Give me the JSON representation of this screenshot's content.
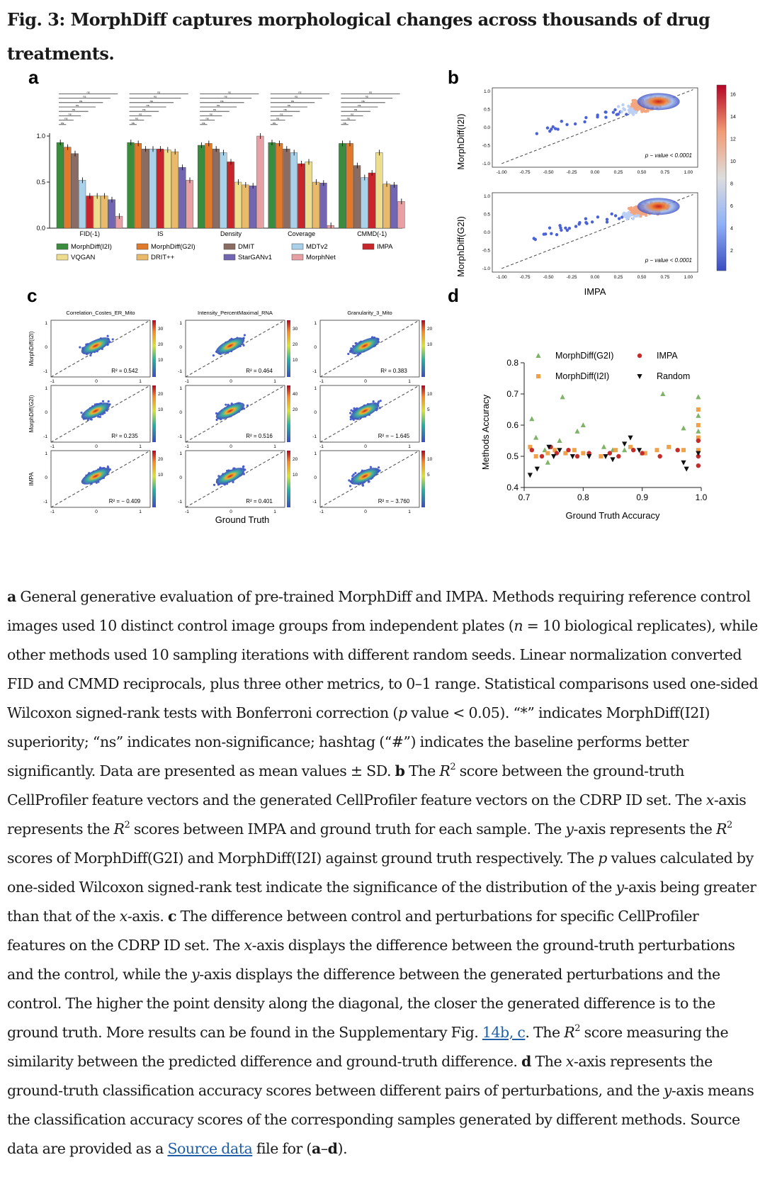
{
  "figure_title": "Fig. 3: MorphDiff captures morphological changes across thousands of drug treatments.",
  "panel_letters": {
    "a": "a",
    "b": "b",
    "c": "c",
    "d": "d"
  },
  "chart_data": [
    {
      "panel": "a",
      "type": "bar",
      "categories": [
        "FID(-1)",
        "IS",
        "Density",
        "Coverage",
        "CMMD(-1)"
      ],
      "ylim": [
        0,
        1.0
      ],
      "yticks": [
        "0.0",
        "0.5",
        "1.0"
      ],
      "legend": {
        "placement": "bottom",
        "entries": [
          "MorphDiff(I2I)",
          "MorphDiff(G2I)",
          "DMIT",
          "MDTv2",
          "IMPA",
          "VQGAN",
          "DRIT++",
          "StarGANv1",
          "MorphNet"
        ]
      },
      "significance_label": "ns",
      "series": [
        {
          "name": "MorphDiff(I2I)",
          "color": "#3a8d3c",
          "values": [
            0.93,
            0.93,
            0.9,
            0.93,
            0.92
          ]
        },
        {
          "name": "MorphDiff(G2I)",
          "color": "#e0792a",
          "values": [
            0.88,
            0.92,
            0.92,
            0.92,
            0.92
          ]
        },
        {
          "name": "DMIT",
          "color": "#8a6c62",
          "values": [
            0.81,
            0.86,
            0.86,
            0.86,
            0.68
          ]
        },
        {
          "name": "MDTv2",
          "color": "#a9d1ea",
          "values": [
            0.52,
            0.86,
            0.82,
            0.82,
            0.55
          ]
        },
        {
          "name": "IMPA",
          "color": "#c9262c",
          "values": [
            0.35,
            0.86,
            0.72,
            0.7,
            0.6
          ]
        },
        {
          "name": "VQGAN",
          "color": "#eedd8c",
          "values": [
            0.35,
            0.85,
            0.5,
            0.72,
            0.82
          ]
        },
        {
          "name": "DRIT++",
          "color": "#e9ba6a",
          "values": [
            0.35,
            0.83,
            0.47,
            0.5,
            0.48
          ]
        },
        {
          "name": "StarGANv1",
          "color": "#7266b3",
          "values": [
            0.31,
            0.66,
            0.46,
            0.49,
            0.47
          ]
        },
        {
          "name": "MorphNet",
          "color": "#e8a0a4",
          "values": [
            0.13,
            0.52,
            1.0,
            0.03,
            0.29
          ]
        }
      ]
    },
    {
      "panel": "b",
      "type": "scatter",
      "xlabel": "IMPA",
      "ylabels": [
        "MorphDiff(I2I)",
        "MorphDiff(G2I)"
      ],
      "xticks": [
        "-1.00",
        "-0.75",
        "-0.50",
        "-0.25",
        "0.00",
        "0.25",
        "0.50",
        "0.75",
        "1.00"
      ],
      "yticks": [
        "-1.0",
        "-0.5",
        "0.0",
        "0.5",
        "1.0"
      ],
      "annotation": "p − value < 0.0001",
      "colorbar_ticks": [
        "2",
        "4",
        "6",
        "8",
        "10",
        "12",
        "14",
        "16"
      ]
    },
    {
      "panel": "c",
      "type": "scatter",
      "xlabel": "Ground Truth",
      "columns": [
        "Correlation_Costes_ER_Mito",
        "Intensity_PercentMaximal_RNA",
        "Granularity_3_Mito"
      ],
      "rows": [
        "MorphDiff(I2I)",
        "MorphDiff(G2I)",
        "IMPA"
      ],
      "r2": [
        [
          "R² = 0.542",
          "R² = 0.464",
          "R² = 0.383"
        ],
        [
          "R² = 0.235",
          "R² = 0.516",
          "R² = − 1.645"
        ],
        [
          "R² = − 0.409",
          "R² = 0.401",
          "R² = − 3.760"
        ]
      ],
      "colorbar_ticks": [
        [
          "30",
          "20",
          "10",
          "30",
          "20",
          "10",
          "20",
          "10"
        ],
        [
          "20",
          "10",
          "40",
          "20",
          "10",
          "5"
        ],
        [
          "20",
          "10",
          "20",
          "10",
          "10",
          "5"
        ]
      ]
    },
    {
      "panel": "d",
      "type": "scatter",
      "xlabel": "Ground Truth Accuracy",
      "ylabel": "Methods Accuracy",
      "xlim": [
        0.7,
        1.0
      ],
      "ylim": [
        0.4,
        0.8
      ],
      "xticks": [
        "0.7",
        "0.8",
        "0.9",
        "1.0"
      ],
      "yticks": [
        "0.4",
        "0.5",
        "0.6",
        "0.7",
        "0.8"
      ],
      "legend": [
        "MorphDiff(G2I)",
        "IMPA",
        "MorphDiff(I2I)",
        "Random"
      ],
      "series": [
        {
          "name": "MorphDiff(G2I)",
          "marker": "triangle-up",
          "color": "#7fb36a",
          "points": [
            [
              0.713,
              0.62
            ],
            [
              0.72,
              0.56
            ],
            [
              0.735,
              0.52
            ],
            [
              0.74,
              0.48
            ],
            [
              0.76,
              0.55
            ],
            [
              0.765,
              0.69
            ],
            [
              0.79,
              0.58
            ],
            [
              0.8,
              0.6
            ],
            [
              0.835,
              0.53
            ],
            [
              0.85,
              0.52
            ],
            [
              0.87,
              0.52
            ],
            [
              0.9,
              0.51
            ],
            [
              0.935,
              0.7
            ],
            [
              0.97,
              0.59
            ],
            [
              0.995,
              0.69
            ],
            [
              0.995,
              0.63
            ],
            [
              0.995,
              0.58
            ]
          ]
        },
        {
          "name": "MorphDiff(I2I)",
          "marker": "square",
          "color": "#f0a24a",
          "points": [
            [
              0.71,
              0.53
            ],
            [
              0.72,
              0.5
            ],
            [
              0.74,
              0.51
            ],
            [
              0.752,
              0.52
            ],
            [
              0.77,
              0.51
            ],
            [
              0.785,
              0.52
            ],
            [
              0.8,
              0.51
            ],
            [
              0.83,
              0.5
            ],
            [
              0.855,
              0.52
            ],
            [
              0.88,
              0.53
            ],
            [
              0.905,
              0.51
            ],
            [
              0.925,
              0.52
            ],
            [
              0.945,
              0.53
            ],
            [
              0.97,
              0.52
            ],
            [
              0.995,
              0.65
            ],
            [
              0.995,
              0.6
            ],
            [
              0.995,
              0.56
            ],
            [
              0.995,
              0.52
            ]
          ]
        },
        {
          "name": "IMPA",
          "marker": "circle",
          "color": "#c42b2b",
          "points": [
            [
              0.713,
              0.52
            ],
            [
              0.73,
              0.5
            ],
            [
              0.745,
              0.53
            ],
            [
              0.755,
              0.51
            ],
            [
              0.775,
              0.52
            ],
            [
              0.79,
              0.5
            ],
            [
              0.81,
              0.51
            ],
            [
              0.845,
              0.51
            ],
            [
              0.86,
              0.5
            ],
            [
              0.885,
              0.52
            ],
            [
              0.9,
              0.51
            ],
            [
              0.93,
              0.5
            ],
            [
              0.96,
              0.52
            ],
            [
              0.995,
              0.55
            ],
            [
              0.995,
              0.5
            ],
            [
              0.995,
              0.47
            ]
          ]
        },
        {
          "name": "Random",
          "marker": "triangle-down",
          "color": "#111111",
          "points": [
            [
              0.71,
              0.44
            ],
            [
              0.722,
              0.46
            ],
            [
              0.742,
              0.53
            ],
            [
              0.75,
              0.5
            ],
            [
              0.76,
              0.52
            ],
            [
              0.782,
              0.5
            ],
            [
              0.81,
              0.5
            ],
            [
              0.838,
              0.5
            ],
            [
              0.85,
              0.49
            ],
            [
              0.87,
              0.54
            ],
            [
              0.88,
              0.56
            ],
            [
              0.895,
              0.52
            ],
            [
              0.97,
              0.48
            ],
            [
              0.975,
              0.46
            ],
            [
              0.995,
              0.51
            ]
          ]
        }
      ]
    }
  ],
  "caption_html": "<b>a</b> General generative evaluation of pre-trained MorphDiff and IMPA. Methods requiring reference control images used 10 distinct control image groups from independent plates (<i>n</i> = 10 biological replicates), while other methods used 10 sampling iterations with different random seeds. Linear normalization converted FID and CMMD reciprocals, plus three other metrics, to 0–1 range. Statistical comparisons used one-sided Wilcoxon signed-rank tests with Bonferroni correction (<i>p</i> value &lt; 0.05). “*” indicates MorphDiff(I2I) superiority; “ns” indicates non-significance; hashtag (“#”) indicates the baseline performs better significantly. Data are presented as mean values ± SD. <b>b</b> The <i>R</i><sup>2</sup> score between the ground-truth CellProfiler feature vectors and the generated CellProfiler feature vectors on the CDRP ID set. The <i>x</i>-axis represents the <i>R</i><sup>2</sup> scores between IMPA and ground truth for each sample. The <i>y</i>-axis represents the <i>R</i><sup>2</sup> scores of MorphDiff(G2I) and MorphDiff(I2I) against ground truth respectively. The <i>p</i> values calculated by one-sided Wilcoxon signed-rank test indicate the significance of the distribution of the <i>y</i>-axis being greater than that of the <i>x</i>-axis. <b>c</b> The difference between control and perturbations for specific CellProfiler features on the CDRP ID set. The <i>x</i>-axis displays the difference between the ground-truth perturbations and the control, while the <i>y</i>-axis displays the difference between the generated perturbations and the control. The higher the point density along the diagonal, the closer the generated difference is to the ground truth. More results can be found in the Supplementary Fig. <a data-name='supp-fig-link' data-interactable='true'>14b, c</a>. The <i>R</i><sup>2</sup> score measuring the similarity between the predicted difference and ground-truth difference. <b>d</b> The <i>x</i>-axis represents the ground-truth classification accuracy scores between different pairs of perturbations, and the <i>y</i>-axis means the classification accuracy scores of the corresponding samples generated by different methods. Source data are provided as a <a data-name='source-data-link' data-interactable='true'>Source data</a> file for (<b>a</b>–<b>d</b>)."
}
